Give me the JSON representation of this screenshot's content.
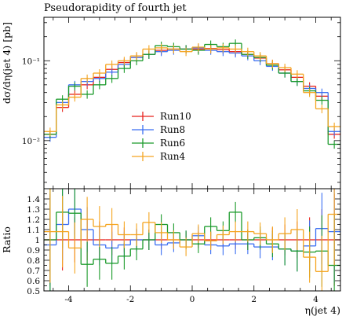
{
  "chart_data": [
    {
      "type": "histogram",
      "title": "Pseudorapidity of fourth jet",
      "xlabel": "",
      "ylabel": "dσ/dη(jet 4) [pb]",
      "yscale": "log",
      "xlim": [
        -4.8,
        4.8
      ],
      "ylim": [
        0.0025,
        0.35
      ],
      "yticks": [
        {
          "value": 0.01,
          "label": "10⁻²"
        },
        {
          "value": 0.1,
          "label": "10⁻¹"
        }
      ],
      "bin_edges": [
        -4.8,
        -4.4,
        -4.0,
        -3.6,
        -3.2,
        -2.8,
        -2.4,
        -2.0,
        -1.6,
        -1.2,
        -0.8,
        -0.4,
        0.0,
        0.4,
        0.8,
        1.2,
        1.6,
        2.0,
        2.4,
        2.8,
        3.2,
        3.6,
        4.0,
        4.4,
        4.8
      ],
      "legend": {
        "placement": "center-left"
      },
      "series": [
        {
          "name": "Run10",
          "color": "#e8211b",
          "values": [
            0.012,
            0.026,
            0.038,
            0.05,
            0.062,
            0.078,
            0.095,
            0.11,
            0.12,
            0.135,
            0.14,
            0.14,
            0.14,
            0.142,
            0.138,
            0.13,
            0.12,
            0.108,
            0.092,
            0.077,
            0.062,
            0.048,
            0.036,
            0.012
          ]
        },
        {
          "name": "Run8",
          "color": "#3a6ef2",
          "values": [
            0.011,
            0.03,
            0.05,
            0.055,
            0.06,
            0.072,
            0.09,
            0.11,
            0.12,
            0.13,
            0.135,
            0.14,
            0.145,
            0.135,
            0.13,
            0.125,
            0.115,
            0.1,
            0.085,
            0.07,
            0.055,
            0.045,
            0.04,
            0.013
          ]
        },
        {
          "name": "Run6",
          "color": "#1a9a2a",
          "values": [
            0.012,
            0.033,
            0.048,
            0.038,
            0.05,
            0.06,
            0.08,
            0.1,
            0.12,
            0.155,
            0.15,
            0.14,
            0.135,
            0.16,
            0.15,
            0.165,
            0.12,
            0.11,
            0.088,
            0.07,
            0.055,
            0.042,
            0.032,
            0.009
          ]
        },
        {
          "name": "Run4",
          "color": "#f5a520",
          "values": [
            0.013,
            0.028,
            0.035,
            0.06,
            0.07,
            0.09,
            0.1,
            0.115,
            0.14,
            0.145,
            0.14,
            0.13,
            0.148,
            0.14,
            0.145,
            0.14,
            0.13,
            0.115,
            0.092,
            0.082,
            0.068,
            0.04,
            0.025,
            0.015
          ]
        }
      ]
    },
    {
      "type": "histogram",
      "title": "",
      "xlabel": "η(jet 4)",
      "ylabel": "Ratio",
      "xlim": [
        -4.8,
        4.8
      ],
      "ylim": [
        0.5,
        1.5
      ],
      "xticks": [
        -4,
        -2,
        0,
        2,
        4
      ],
      "yticks": [
        0.5,
        0.6,
        0.7,
        0.8,
        0.9,
        1,
        1.1,
        1.2,
        1.3,
        1.4
      ],
      "bin_edges": [
        -4.8,
        -4.4,
        -4.0,
        -3.6,
        -3.2,
        -2.8,
        -2.4,
        -2.0,
        -1.6,
        -1.2,
        -0.8,
        -0.4,
        0.0,
        0.4,
        0.8,
        1.2,
        1.6,
        2.0,
        2.4,
        2.8,
        3.2,
        3.6,
        4.0,
        4.4,
        4.8
      ],
      "series": [
        {
          "name": "Run10",
          "color": "#e8211b",
          "values": [
            1,
            1,
            1,
            1,
            1,
            1,
            1,
            1,
            1,
            1,
            1,
            1,
            1,
            1,
            1,
            1,
            1,
            1,
            1,
            1,
            1,
            1,
            1,
            1
          ],
          "errors": [
            0.45,
            0.3,
            0.22,
            0.2,
            0.18,
            0.15,
            0.12,
            0.1,
            0.1,
            0.09,
            0.08,
            0.08,
            0.08,
            0.08,
            0.08,
            0.09,
            0.1,
            0.1,
            0.12,
            0.15,
            0.18,
            0.22,
            0.3,
            0.45
          ]
        },
        {
          "name": "Run8",
          "color": "#3a6ef2",
          "values": [
            0.95,
            1.15,
            1.3,
            1.1,
            0.95,
            0.92,
            0.95,
            1.0,
            1.0,
            0.95,
            0.97,
            1.0,
            1.04,
            0.95,
            0.94,
            0.96,
            0.96,
            0.93,
            0.93,
            0.91,
            0.89,
            0.94,
            1.11,
            1.08
          ],
          "errors": [
            0.5,
            0.35,
            0.25,
            0.22,
            0.2,
            0.16,
            0.13,
            0.11,
            0.1,
            0.1,
            0.09,
            0.09,
            0.09,
            0.09,
            0.09,
            0.1,
            0.1,
            0.11,
            0.13,
            0.16,
            0.2,
            0.25,
            0.35,
            0.5
          ]
        },
        {
          "name": "Run6",
          "color": "#1a9a2a",
          "values": [
            1.0,
            1.27,
            1.26,
            0.76,
            0.81,
            0.77,
            0.84,
            0.91,
            1.0,
            1.15,
            1.07,
            1.0,
            0.96,
            1.13,
            1.09,
            1.27,
            1.0,
            1.02,
            0.96,
            0.91,
            0.89,
            0.88,
            0.89,
            0.75
          ],
          "errors": [
            0.5,
            0.35,
            0.25,
            0.22,
            0.2,
            0.16,
            0.13,
            0.11,
            0.1,
            0.1,
            0.09,
            0.09,
            0.09,
            0.09,
            0.09,
            0.1,
            0.1,
            0.11,
            0.13,
            0.16,
            0.2,
            0.25,
            0.35,
            0.5
          ]
        },
        {
          "name": "Run4",
          "color": "#f5a520",
          "values": [
            1.08,
            1.08,
            0.92,
            1.2,
            1.13,
            1.15,
            1.05,
            1.05,
            1.17,
            1.07,
            1.0,
            0.93,
            1.06,
            0.99,
            1.05,
            1.08,
            1.08,
            1.06,
            1.0,
            1.06,
            1.1,
            0.83,
            0.69,
            1.25
          ],
          "errors": [
            0.5,
            0.35,
            0.25,
            0.22,
            0.2,
            0.16,
            0.13,
            0.11,
            0.1,
            0.1,
            0.09,
            0.09,
            0.09,
            0.09,
            0.09,
            0.1,
            0.1,
            0.11,
            0.13,
            0.16,
            0.2,
            0.25,
            0.35,
            0.5
          ]
        }
      ]
    }
  ]
}
